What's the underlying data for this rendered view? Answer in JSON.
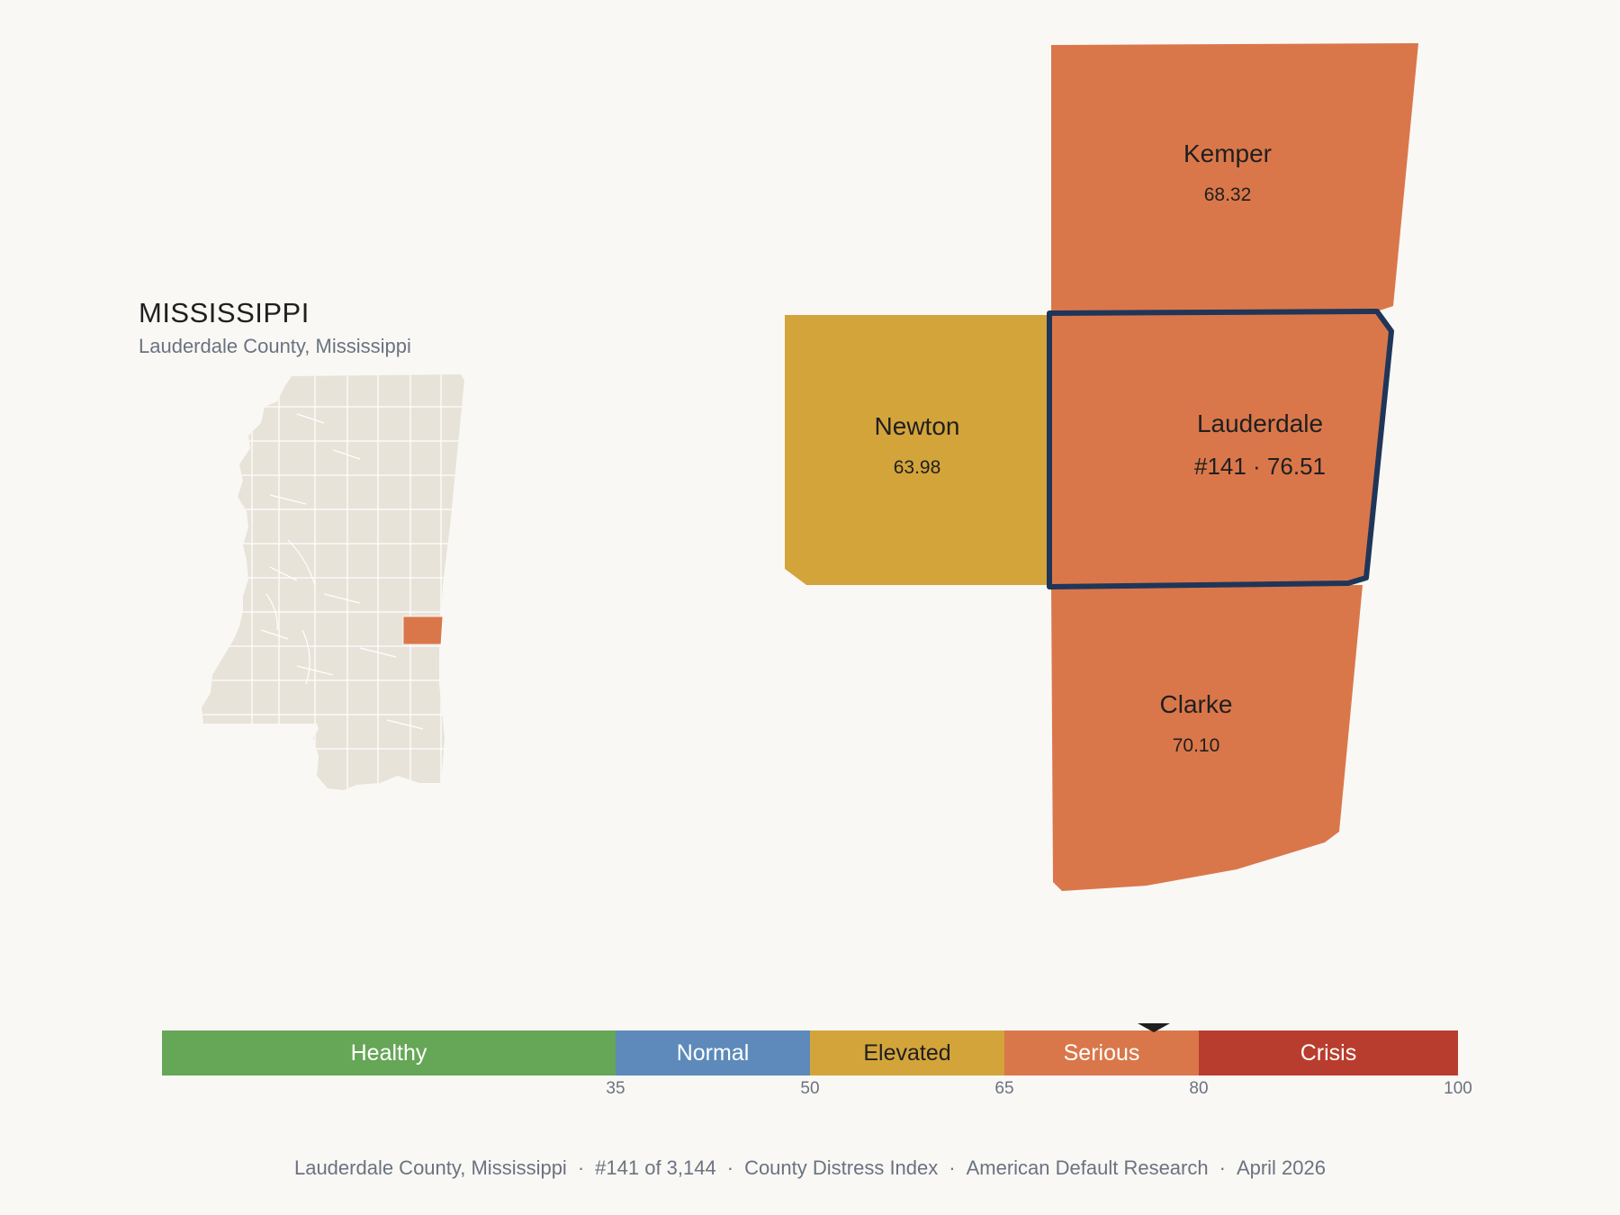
{
  "header": {
    "state": "MISSISSIPPI",
    "subtitle": "Lauderdale County, Mississippi"
  },
  "colors": {
    "background": "#f9f8f5",
    "inset_county_fill": "#e8e3d9",
    "inset_county_stroke": "#ffffff",
    "highlight_outline": "#1f3658",
    "elevated": "#d3a43a",
    "serious": "#da774a"
  },
  "counties": {
    "kemper": {
      "name": "Kemper",
      "value": "68.32",
      "band": "Serious"
    },
    "newton": {
      "name": "Newton",
      "value": "63.98",
      "band": "Elevated"
    },
    "lauderdale": {
      "name": "Lauderdale",
      "value": "#141 · 76.51",
      "band": "Serious"
    },
    "clarke": {
      "name": "Clarke",
      "value": "70.10",
      "band": "Serious"
    }
  },
  "selected_score": 76.51,
  "legend": {
    "bands": [
      {
        "label": "Healthy",
        "from": 0,
        "to": 35,
        "color": "#66a657",
        "text_color": "#ffffff"
      },
      {
        "label": "Normal",
        "from": 35,
        "to": 50,
        "color": "#5d8aba",
        "text_color": "#ffffff"
      },
      {
        "label": "Elevated",
        "from": 50,
        "to": 65,
        "color": "#d3a43a",
        "text_color": "#1f1f1f"
      },
      {
        "label": "Serious",
        "from": 65,
        "to": 80,
        "color": "#da774a",
        "text_color": "#ffffff"
      },
      {
        "label": "Crisis",
        "from": 80,
        "to": 100,
        "color": "#b93d2e",
        "text_color": "#ffffff"
      }
    ],
    "ticks": [
      "35",
      "50",
      "65",
      "80",
      "100"
    ]
  },
  "footer": {
    "county": "Lauderdale County, Mississippi",
    "rank": "#141 of 3,144",
    "index": "County Distress Index",
    "source": "American Default Research",
    "date": "April 2026"
  }
}
